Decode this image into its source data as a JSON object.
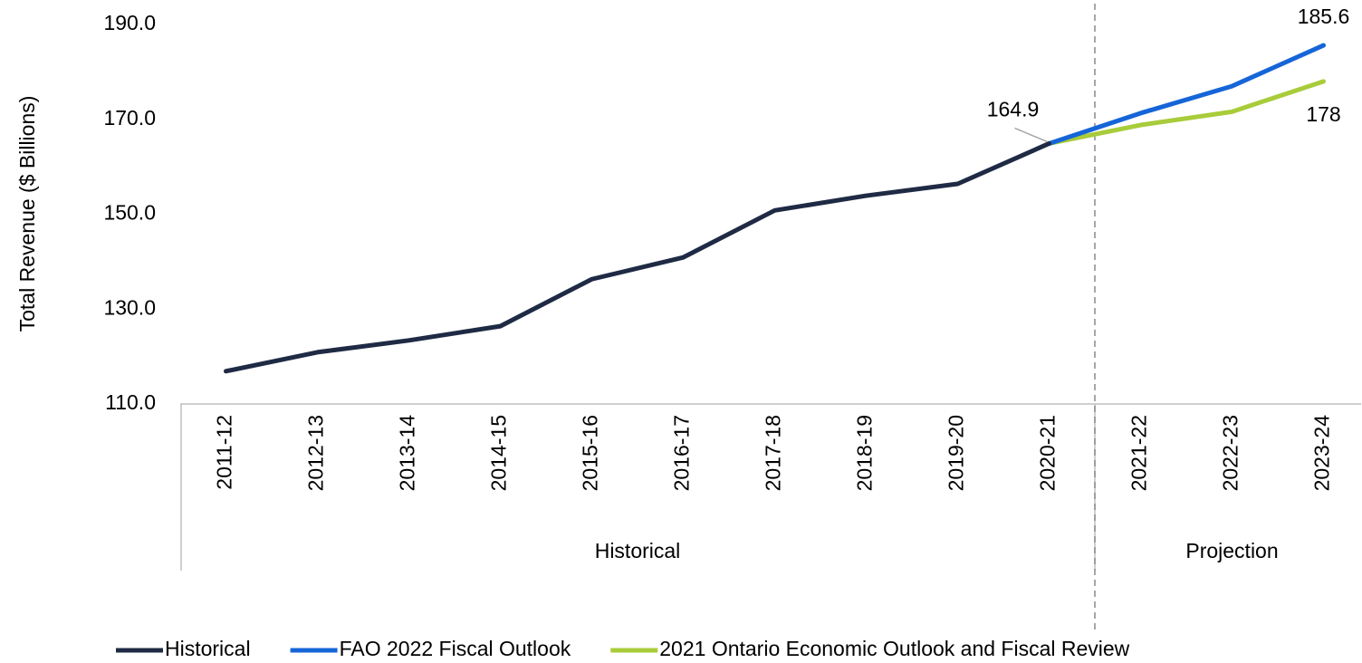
{
  "chart_data": {
    "type": "line",
    "y_label": "Total Revenue ($ Billions)",
    "categories": [
      "2011-12",
      "2012-13",
      "2013-14",
      "2014-15",
      "2015-16",
      "2016-17",
      "2017-18",
      "2018-19",
      "2019-20",
      "2020-21",
      "2021-22",
      "2022-23",
      "2023-24"
    ],
    "groups": [
      {
        "label": "Historical",
        "start": 0,
        "end": 9
      },
      {
        "label": "Projection",
        "start": 10,
        "end": 12
      }
    ],
    "series": [
      {
        "name": "Historical",
        "color": "#1f2a44",
        "values": [
          116.9,
          120.9,
          123.4,
          126.4,
          136.3,
          140.9,
          150.8,
          153.9,
          156.4,
          164.9,
          null,
          null,
          null
        ]
      },
      {
        "name": "FAO 2022 Fiscal Outlook",
        "color": "#1565d8",
        "values": [
          null,
          null,
          null,
          null,
          null,
          null,
          null,
          null,
          null,
          164.9,
          171.3,
          177.0,
          185.6
        ]
      },
      {
        "name": "2021 Ontario Economic Outlook and Fiscal Review",
        "color": "#a8cc3a",
        "values": [
          null,
          null,
          null,
          null,
          null,
          null,
          null,
          null,
          null,
          164.9,
          168.8,
          171.6,
          178.0
        ]
      }
    ],
    "data_labels": [
      {
        "series": 0,
        "index": 9
      },
      {
        "series": 1,
        "index": 12
      },
      {
        "series": 2,
        "index": 12
      }
    ],
    "ylim": [
      110,
      190
    ],
    "yticks": [
      {
        "value": 110,
        "label": "110.0"
      },
      {
        "value": 130,
        "label": "130.0"
      },
      {
        "value": 150,
        "label": "150.0"
      },
      {
        "value": 170,
        "label": "170.0"
      },
      {
        "value": 190,
        "label": "190.0"
      }
    ],
    "grid": false,
    "legend": "bottom"
  }
}
